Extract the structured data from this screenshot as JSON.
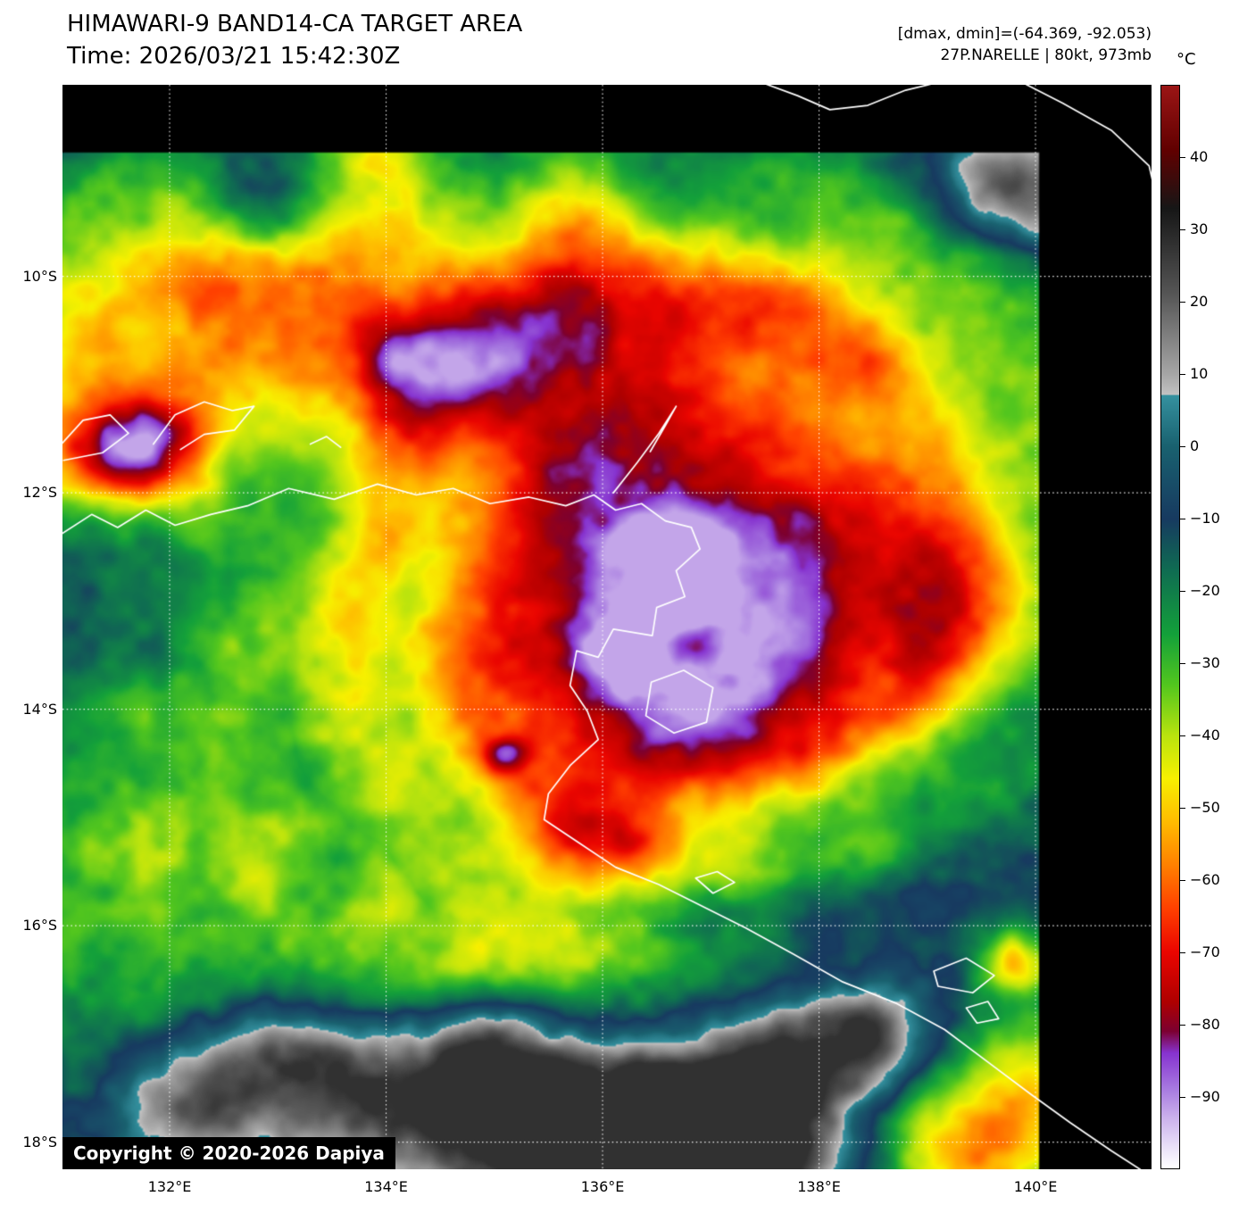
{
  "header": {
    "title": "HIMAWARI-9 BAND14-CA TARGET AREA",
    "time_line": "Time: 2026/03/21 15:42:30Z",
    "range_line": "[dmax, dmin]=(-64.369, -92.053)",
    "storm_line": "27P.NARELLE | 80kt, 973mb"
  },
  "watermark": "Copyright © 2020-2026 Dapiya",
  "colorbar": {
    "unit_label": "°C",
    "temp_max": 50,
    "temp_min": -100,
    "ticks": [
      {
        "label": "40",
        "value": 40
      },
      {
        "label": "30",
        "value": 30
      },
      {
        "label": "20",
        "value": 20
      },
      {
        "label": "10",
        "value": 10
      },
      {
        "label": "0",
        "value": 0
      },
      {
        "label": "−10",
        "value": -10
      },
      {
        "label": "−20",
        "value": -20
      },
      {
        "label": "−30",
        "value": -30
      },
      {
        "label": "−40",
        "value": -40
      },
      {
        "label": "−50",
        "value": -50
      },
      {
        "label": "−60",
        "value": -60
      },
      {
        "label": "−70",
        "value": -70
      },
      {
        "label": "−80",
        "value": -80
      },
      {
        "label": "−90",
        "value": -90
      }
    ],
    "stops": [
      {
        "t": 50,
        "c": "#9b1515"
      },
      {
        "t": 41,
        "c": "#600000"
      },
      {
        "t": 33,
        "c": "#161616"
      },
      {
        "t": 21,
        "c": "#565656"
      },
      {
        "t": 10,
        "c": "#a6a6a6"
      },
      {
        "t": 7.2,
        "c": "#c2c2c2"
      },
      {
        "t": 7.1,
        "c": "#35919f"
      },
      {
        "t": 0,
        "c": "#19616f"
      },
      {
        "t": -10,
        "c": "#173a60"
      },
      {
        "t": -17,
        "c": "#0f6b52"
      },
      {
        "t": -26,
        "c": "#13a03a"
      },
      {
        "t": -33,
        "c": "#52c61e"
      },
      {
        "t": -40,
        "c": "#b8e30e"
      },
      {
        "t": -46,
        "c": "#f7f000"
      },
      {
        "t": -52,
        "c": "#ffbb00"
      },
      {
        "t": -58,
        "c": "#ff8000"
      },
      {
        "t": -64,
        "c": "#ff4000"
      },
      {
        "t": -70,
        "c": "#ea0500"
      },
      {
        "t": -77,
        "c": "#ae0000"
      },
      {
        "t": -81,
        "c": "#7c0030"
      },
      {
        "t": -84,
        "c": "#8632cf"
      },
      {
        "t": -89,
        "c": "#a77ae0"
      },
      {
        "t": -93,
        "c": "#cbb1ec"
      },
      {
        "t": -97,
        "c": "#e9e0f8"
      },
      {
        "t": -100,
        "c": "#ffffff"
      }
    ]
  },
  "axes": {
    "lat_ticks": [
      {
        "label": "10°S",
        "value": -10
      },
      {
        "label": "12°S",
        "value": -12
      },
      {
        "label": "14°S",
        "value": -14
      },
      {
        "label": "16°S",
        "value": -16
      },
      {
        "label": "18°S",
        "value": -18
      }
    ],
    "lon_ticks": [
      {
        "label": "132°E",
        "value": 132
      },
      {
        "label": "134°E",
        "value": 134
      },
      {
        "label": "136°E",
        "value": 136
      },
      {
        "label": "138°E",
        "value": 138
      },
      {
        "label": "140°E",
        "value": 140
      }
    ]
  }
}
